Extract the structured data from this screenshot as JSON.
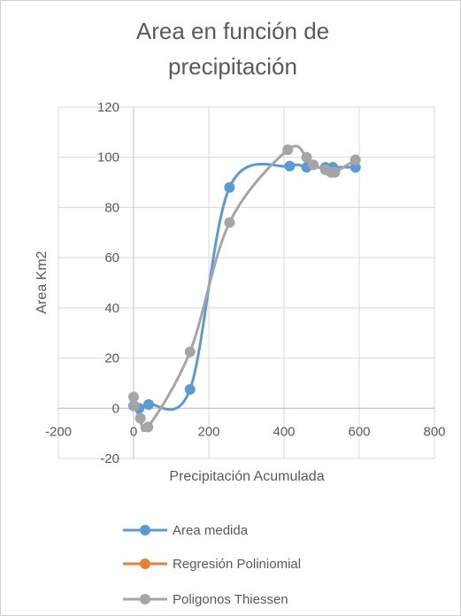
{
  "chart_data": {
    "type": "scatter",
    "title_lines": [
      "Area en función de",
      "precipitación"
    ],
    "xlabel": "Precipitación Acumulada",
    "ylabel": "Area Km2",
    "xlim": [
      -200,
      800
    ],
    "ylim": [
      -20,
      120
    ],
    "x_ticks": [
      -200,
      0,
      200,
      400,
      600,
      800
    ],
    "y_ticks": [
      -20,
      0,
      20,
      40,
      60,
      80,
      100,
      120
    ],
    "grid": true,
    "legend_position": "bottom",
    "series": [
      {
        "name": "Area medida",
        "color": "#5B9BD5",
        "marker": "circle",
        "smooth": true,
        "points": [
          [
            0,
            1
          ],
          [
            15,
            0
          ],
          [
            40,
            1.5
          ],
          [
            150,
            7.5
          ],
          [
            255,
            88
          ],
          [
            415,
            96.5
          ],
          [
            460,
            96
          ],
          [
            510,
            96
          ],
          [
            530,
            96
          ],
          [
            590,
            96
          ]
        ]
      },
      {
        "name": "Regresión Poliniomial",
        "color": "#ED7D31",
        "marker": "circle",
        "smooth": true,
        "points": []
      },
      {
        "name": "Poligonos Thiessen",
        "color": "#A5A5A5",
        "marker": "circle",
        "smooth": true,
        "points": [
          [
            0,
            4.5
          ],
          [
            2,
            1
          ],
          [
            18,
            -4
          ],
          [
            38,
            -7.5
          ],
          [
            150,
            22.5
          ],
          [
            255,
            74
          ],
          [
            410,
            103
          ],
          [
            460,
            100
          ],
          [
            478,
            97
          ],
          [
            510,
            95
          ],
          [
            525,
            94
          ],
          [
            535,
            94
          ],
          [
            590,
            99
          ]
        ]
      }
    ]
  }
}
